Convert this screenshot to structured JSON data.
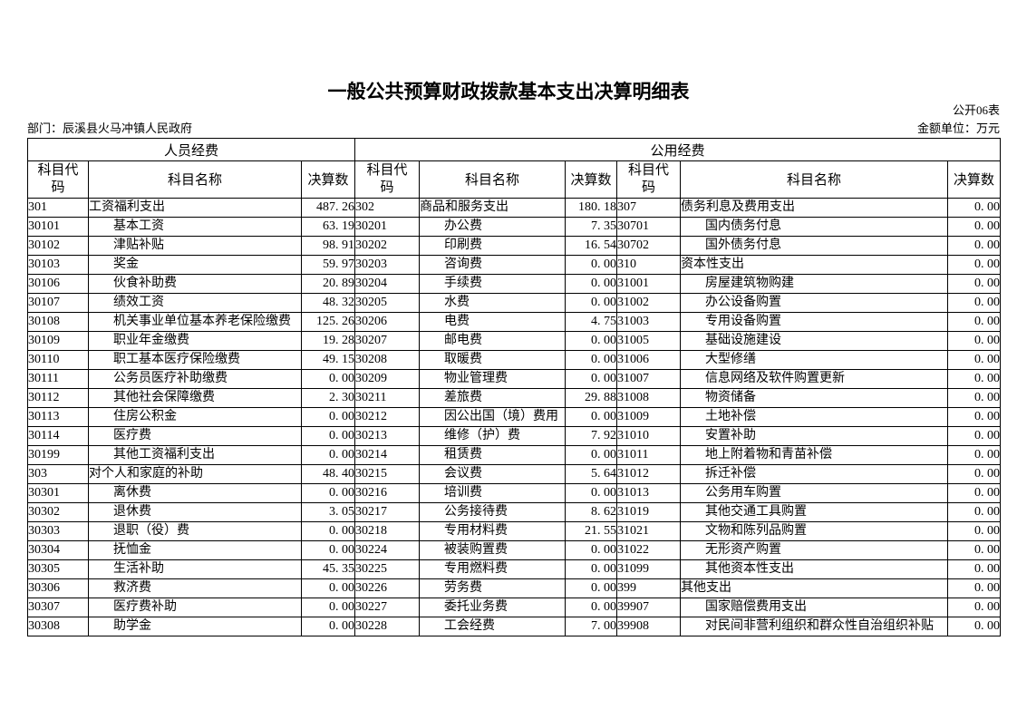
{
  "page": {
    "title": "一般公共预算财政拨款基本支出决算明细表",
    "form_code": "公开06表",
    "department": "部门：辰溪县火马冲镇人民政府",
    "unit": "金额单位：万元"
  },
  "table": {
    "groups": [
      {
        "label": "人员经费"
      },
      {
        "label": "公用经费"
      }
    ],
    "columns": [
      {
        "label": "科目代码"
      },
      {
        "label": "科目名称"
      },
      {
        "label": "决算数"
      }
    ],
    "sections": [
      {
        "id": "personnel",
        "rows": [
          {
            "code": "301",
            "name": "工资福利支出",
            "value": "487.26",
            "level": 1
          },
          {
            "code": "30101",
            "name": "基本工资",
            "value": "63.19",
            "level": 2
          },
          {
            "code": "30102",
            "name": "津贴补贴",
            "value": "98.91",
            "level": 2
          },
          {
            "code": "30103",
            "name": "奖金",
            "value": "59.97",
            "level": 2
          },
          {
            "code": "30106",
            "name": "伙食补助费",
            "value": "20.89",
            "level": 2
          },
          {
            "code": "30107",
            "name": "绩效工资",
            "value": "48.32",
            "level": 2
          },
          {
            "code": "30108",
            "name": "机关事业单位基本养老保险缴费",
            "value": "125.26",
            "level": 2
          },
          {
            "code": "30109",
            "name": "职业年金缴费",
            "value": "19.28",
            "level": 2
          },
          {
            "code": "30110",
            "name": "职工基本医疗保险缴费",
            "value": "49.15",
            "level": 2
          },
          {
            "code": "30111",
            "name": "公务员医疗补助缴费",
            "value": "0.00",
            "level": 2
          },
          {
            "code": "30112",
            "name": "其他社会保障缴费",
            "value": "2.30",
            "level": 2
          },
          {
            "code": "30113",
            "name": "住房公积金",
            "value": "0.00",
            "level": 2
          },
          {
            "code": "30114",
            "name": "医疗费",
            "value": "0.00",
            "level": 2
          },
          {
            "code": "30199",
            "name": "其他工资福利支出",
            "value": "0.00",
            "level": 2
          },
          {
            "code": "303",
            "name": "对个人和家庭的补助",
            "value": "48.40",
            "level": 1
          },
          {
            "code": "30301",
            "name": "离休费",
            "value": "0.00",
            "level": 2
          },
          {
            "code": "30302",
            "name": "退休费",
            "value": "3.05",
            "level": 2
          },
          {
            "code": "30303",
            "name": "退职（役）费",
            "value": "0.00",
            "level": 2
          },
          {
            "code": "30304",
            "name": "抚恤金",
            "value": "0.00",
            "level": 2
          },
          {
            "code": "30305",
            "name": "生活补助",
            "value": "45.35",
            "level": 2
          },
          {
            "code": "30306",
            "name": "救济费",
            "value": "0.00",
            "level": 2
          },
          {
            "code": "30307",
            "name": "医疗费补助",
            "value": "0.00",
            "level": 2
          },
          {
            "code": "30308",
            "name": "助学金",
            "value": "0.00",
            "level": 2
          }
        ]
      },
      {
        "id": "public-first",
        "rows": [
          {
            "code": "302",
            "name": "商品和服务支出",
            "value": "180.18",
            "level": 1
          },
          {
            "code": "30201",
            "name": "办公费",
            "value": "7.35",
            "level": 2
          },
          {
            "code": "30202",
            "name": "印刷费",
            "value": "16.54",
            "level": 2
          },
          {
            "code": "30203",
            "name": "咨询费",
            "value": "0.00",
            "level": 2
          },
          {
            "code": "30204",
            "name": "手续费",
            "value": "0.00",
            "level": 2
          },
          {
            "code": "30205",
            "name": "水费",
            "value": "0.00",
            "level": 2
          },
          {
            "code": "30206",
            "name": "电费",
            "value": "4.75",
            "level": 2
          },
          {
            "code": "30207",
            "name": "邮电费",
            "value": "0.00",
            "level": 2
          },
          {
            "code": "30208",
            "name": "取暖费",
            "value": "0.00",
            "level": 2
          },
          {
            "code": "30209",
            "name": "物业管理费",
            "value": "0.00",
            "level": 2
          },
          {
            "code": "30211",
            "name": "差旅费",
            "value": "29.88",
            "level": 2
          },
          {
            "code": "30212",
            "name": "因公出国（境）费用",
            "value": "0.00",
            "level": 2
          },
          {
            "code": "30213",
            "name": "维修（护）费",
            "value": "7.92",
            "level": 2
          },
          {
            "code": "30214",
            "name": "租赁费",
            "value": "0.00",
            "level": 2
          },
          {
            "code": "30215",
            "name": "会议费",
            "value": "5.64",
            "level": 2
          },
          {
            "code": "30216",
            "name": "培训费",
            "value": "0.00",
            "level": 2
          },
          {
            "code": "30217",
            "name": "公务接待费",
            "value": "8.62",
            "level": 2
          },
          {
            "code": "30218",
            "name": "专用材料费",
            "value": "21.55",
            "level": 2
          },
          {
            "code": "30224",
            "name": "被装购置费",
            "value": "0.00",
            "level": 2
          },
          {
            "code": "30225",
            "name": "专用燃料费",
            "value": "0.00",
            "level": 2
          },
          {
            "code": "30226",
            "name": "劳务费",
            "value": "0.00",
            "level": 2
          },
          {
            "code": "30227",
            "name": "委托业务费",
            "value": "0.00",
            "level": 2
          },
          {
            "code": "30228",
            "name": "工会经费",
            "value": "7.00",
            "level": 2
          }
        ]
      },
      {
        "id": "public-second",
        "rows": [
          {
            "code": "307",
            "name": "债务利息及费用支出",
            "value": "0.00",
            "level": 1
          },
          {
            "code": "30701",
            "name": "国内债务付息",
            "value": "0.00",
            "level": 2
          },
          {
            "code": "30702",
            "name": "国外债务付息",
            "value": "0.00",
            "level": 2
          },
          {
            "code": "310",
            "name": "资本性支出",
            "value": "0.00",
            "level": 1
          },
          {
            "code": "31001",
            "name": "房屋建筑物购建",
            "value": "0.00",
            "level": 2
          },
          {
            "code": "31002",
            "name": "办公设备购置",
            "value": "0.00",
            "level": 2
          },
          {
            "code": "31003",
            "name": "专用设备购置",
            "value": "0.00",
            "level": 2
          },
          {
            "code": "31005",
            "name": "基础设施建设",
            "value": "0.00",
            "level": 2
          },
          {
            "code": "31006",
            "name": "大型修缮",
            "value": "0.00",
            "level": 2
          },
          {
            "code": "31007",
            "name": "信息网络及软件购置更新",
            "value": "0.00",
            "level": 2
          },
          {
            "code": "31008",
            "name": "物资储备",
            "value": "0.00",
            "level": 2
          },
          {
            "code": "31009",
            "name": "土地补偿",
            "value": "0.00",
            "level": 2
          },
          {
            "code": "31010",
            "name": "安置补助",
            "value": "0.00",
            "level": 2
          },
          {
            "code": "31011",
            "name": "地上附着物和青苗补偿",
            "value": "0.00",
            "level": 2
          },
          {
            "code": "31012",
            "name": "拆迁补偿",
            "value": "0.00",
            "level": 2
          },
          {
            "code": "31013",
            "name": "公务用车购置",
            "value": "0.00",
            "level": 2
          },
          {
            "code": "31019",
            "name": "其他交通工具购置",
            "value": "0.00",
            "level": 2
          },
          {
            "code": "31021",
            "name": "文物和陈列品购置",
            "value": "0.00",
            "level": 2
          },
          {
            "code": "31022",
            "name": "无形资产购置",
            "value": "0.00",
            "level": 2
          },
          {
            "code": "31099",
            "name": "其他资本性支出",
            "value": "0.00",
            "level": 2
          },
          {
            "code": "399",
            "name": "其他支出",
            "value": "0.00",
            "level": 1
          },
          {
            "code": "39907",
            "name": "国家赔偿费用支出",
            "value": "0.00",
            "level": 2
          },
          {
            "code": "39908",
            "name": "对民间非营利组织和群众性自治组织补贴",
            "value": "0.00",
            "level": 2
          }
        ]
      }
    ]
  }
}
